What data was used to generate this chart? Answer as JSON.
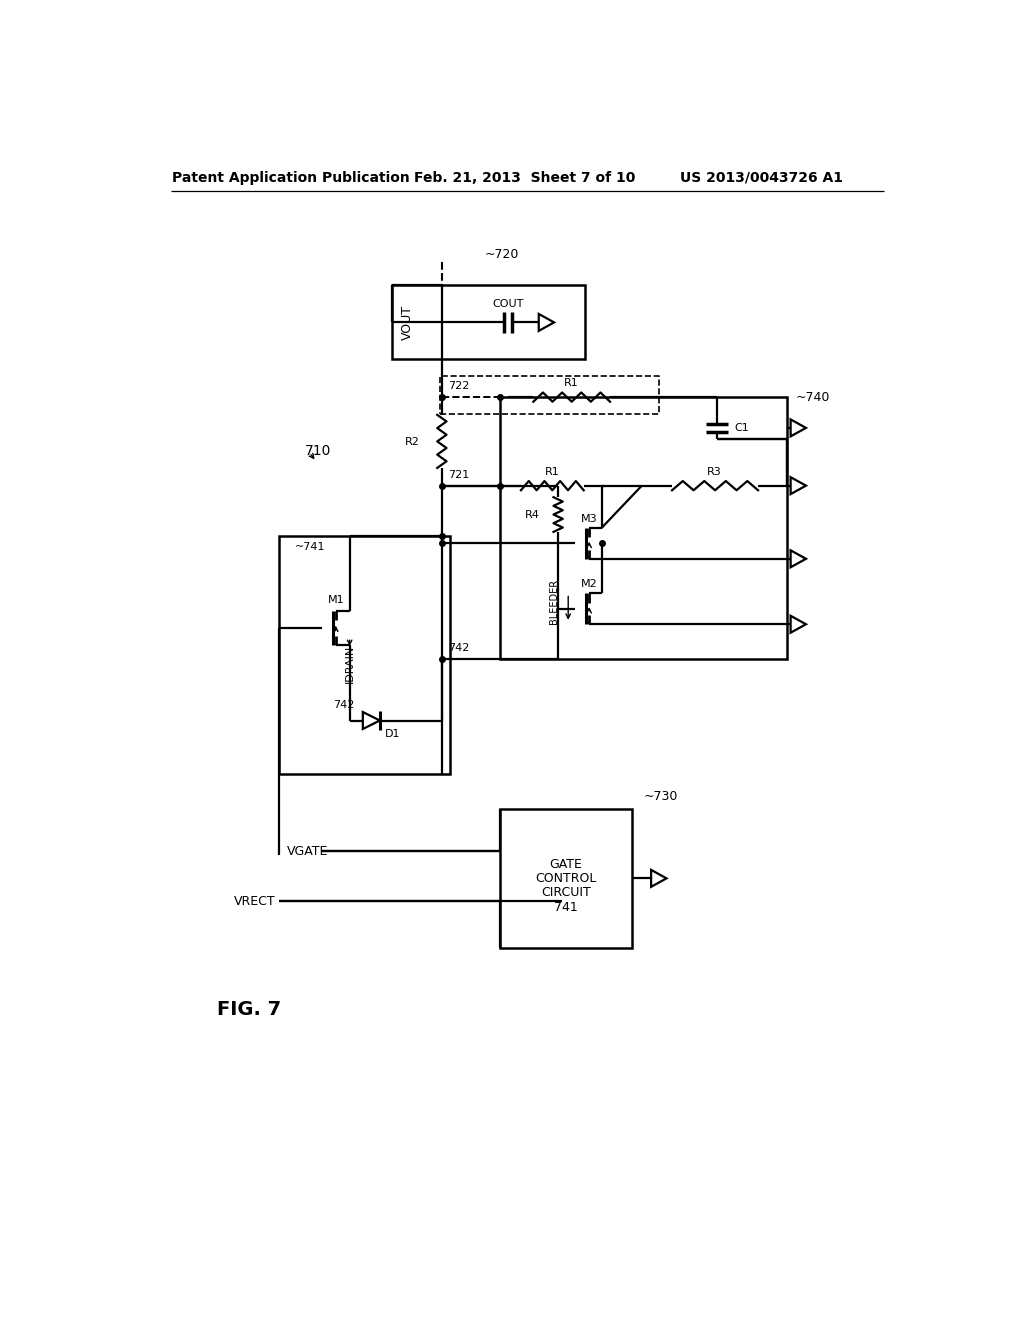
{
  "bg": "#ffffff",
  "lc": "#000000",
  "header_left": "Patent Application Publication",
  "header_center": "Feb. 21, 2013  Sheet 7 of 10",
  "header_right": "US 2013/0043726 A1",
  "fig_label": "FIG. 7"
}
